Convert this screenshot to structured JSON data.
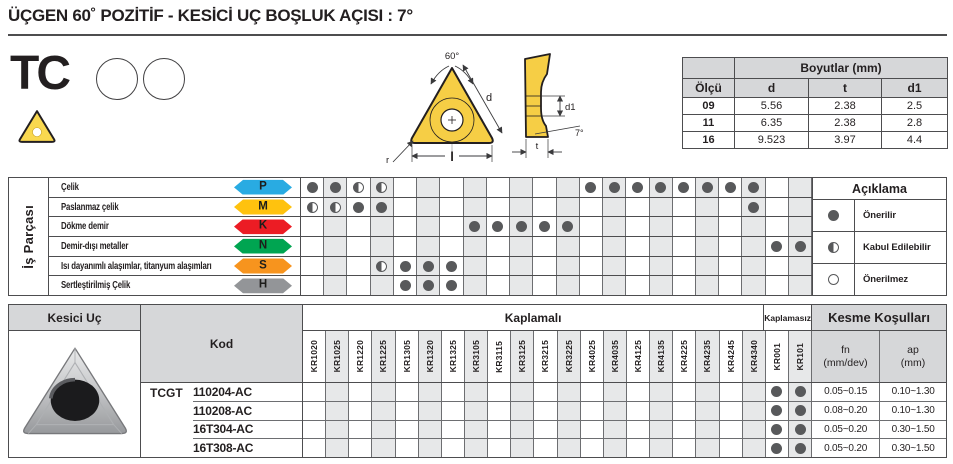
{
  "title": "ÜÇGEN 60˚ POZİTİF - KESİCİ UÇ BOŞLUK AÇISI : 7°",
  "series": {
    "code": "TC"
  },
  "drawing": {
    "front": {
      "angle": "60°",
      "d": "d",
      "r": "r",
      "l": "l"
    },
    "side": {
      "d1": "d1",
      "clearance": "7°",
      "t": "t"
    }
  },
  "dimensions_table": {
    "title": "Boyutlar (mm)",
    "columns": [
      "Ölçü",
      "d",
      "t",
      "d1"
    ],
    "rows": [
      [
        "09",
        "5.56",
        "2.38",
        "2.5"
      ],
      [
        "11",
        "6.35",
        "2.38",
        "2.8"
      ],
      [
        "16",
        "9.523",
        "3.97",
        "4.4"
      ]
    ]
  },
  "workpiece_panel": {
    "side_label": "İş Parçası",
    "materials": [
      {
        "name": "Çelik",
        "letter": "P",
        "color": "#29ABE2"
      },
      {
        "name": "Paslanmaz çelik",
        "letter": "M",
        "color": "#FFC20E"
      },
      {
        "name": "Dökme demir",
        "letter": "K",
        "color": "#EC1C24"
      },
      {
        "name": "Demir-dışı metaller",
        "letter": "N",
        "color": "#00A551"
      },
      {
        "name": "Isı dayanımlı alaşımlar, titanyum alaşımları",
        "letter": "S",
        "color": "#F7941E"
      },
      {
        "name": "Sertleştirilmiş Çelik",
        "letter": "H",
        "color": "#939598"
      }
    ],
    "marks": [
      [
        "full",
        "full",
        "half",
        "half",
        "",
        "",
        "",
        "",
        "",
        "",
        "",
        "",
        "full",
        "full",
        "full",
        "full",
        "full",
        "full",
        "full",
        "full",
        "",
        ""
      ],
      [
        "half",
        "half",
        "full",
        "full",
        "",
        "",
        "",
        "",
        "",
        "",
        "",
        "",
        "",
        "",
        "",
        "",
        "",
        "",
        "",
        "full",
        "",
        ""
      ],
      [
        "",
        "",
        "",
        "",
        "",
        "",
        "",
        "full",
        "full",
        "full",
        "full",
        "full",
        "",
        "",
        "",
        "",
        "",
        "",
        "",
        "",
        "",
        ""
      ],
      [
        "",
        "",
        "",
        "",
        "",
        "",
        "",
        "",
        "",
        "",
        "",
        "",
        "",
        "",
        "",
        "",
        "",
        "",
        "",
        "",
        "full",
        "full"
      ],
      [
        "",
        "",
        "",
        "half",
        "full",
        "full",
        "full",
        "",
        "",
        "",
        "",
        "",
        "",
        "",
        "",
        "",
        "",
        "",
        "",
        "",
        "",
        ""
      ],
      [
        "",
        "",
        "",
        "",
        "full",
        "full",
        "full",
        "",
        "",
        "",
        "",
        "",
        "",
        "",
        "",
        "",
        "",
        "",
        "",
        "",
        "",
        ""
      ]
    ]
  },
  "legend": {
    "title": "Açıklama",
    "items": [
      {
        "symbol": "full",
        "label": "Önerilir"
      },
      {
        "symbol": "half",
        "label": "Kabul Edilebilir"
      },
      {
        "symbol": "empty",
        "label": "Önerilmez"
      }
    ]
  },
  "grades": {
    "coated_label": "Kaplamalı",
    "uncoated_label": "Kaplamasız",
    "coated": [
      "KR1020",
      "KR1025",
      "KR1220",
      "KR1225",
      "KR1305",
      "KR1320",
      "KR1325",
      "KR3105",
      "KR3115",
      "KR3125",
      "KR3215",
      "KR3225",
      "KR4025",
      "KR4035",
      "KR4125",
      "KR4135",
      "KR4225",
      "KR4235",
      "KR4245",
      "KR4340"
    ],
    "uncoated": [
      "KR001",
      "KR101"
    ]
  },
  "insert_table": {
    "header": "Kesici Uç",
    "kod_header": "Kod",
    "series_code": "TCGT",
    "cutting_header": "Kesme Koşulları",
    "fn_label": "fn",
    "fn_unit": "(mm/dev)",
    "ap_label": "ap",
    "ap_unit": "(mm)",
    "rows": [
      {
        "code": "110204-AC",
        "available": [
          "KR001",
          "KR101"
        ],
        "fn": "0.05~0.15",
        "ap": "0.10~1.30"
      },
      {
        "code": "110208-AC",
        "available": [
          "KR001",
          "KR101"
        ],
        "fn": "0.08~0.20",
        "ap": "0.10~1.30"
      },
      {
        "code": "16T304-AC",
        "available": [
          "KR001",
          "KR101"
        ],
        "fn": "0.05~0.20",
        "ap": "0.30~1.50"
      },
      {
        "code": "16T308-AC",
        "available": [
          "KR001",
          "KR101"
        ],
        "fn": "0.05~0.20",
        "ap": "0.30~1.50"
      }
    ]
  },
  "colors": {
    "text_dark": "#231F20",
    "table_border": "#4D4D4F",
    "header_fill": "#D6D7D9",
    "alt_column_fill": "#E7E8E9",
    "dot": "#58595B",
    "insert_yellow": "#F6CE45"
  }
}
